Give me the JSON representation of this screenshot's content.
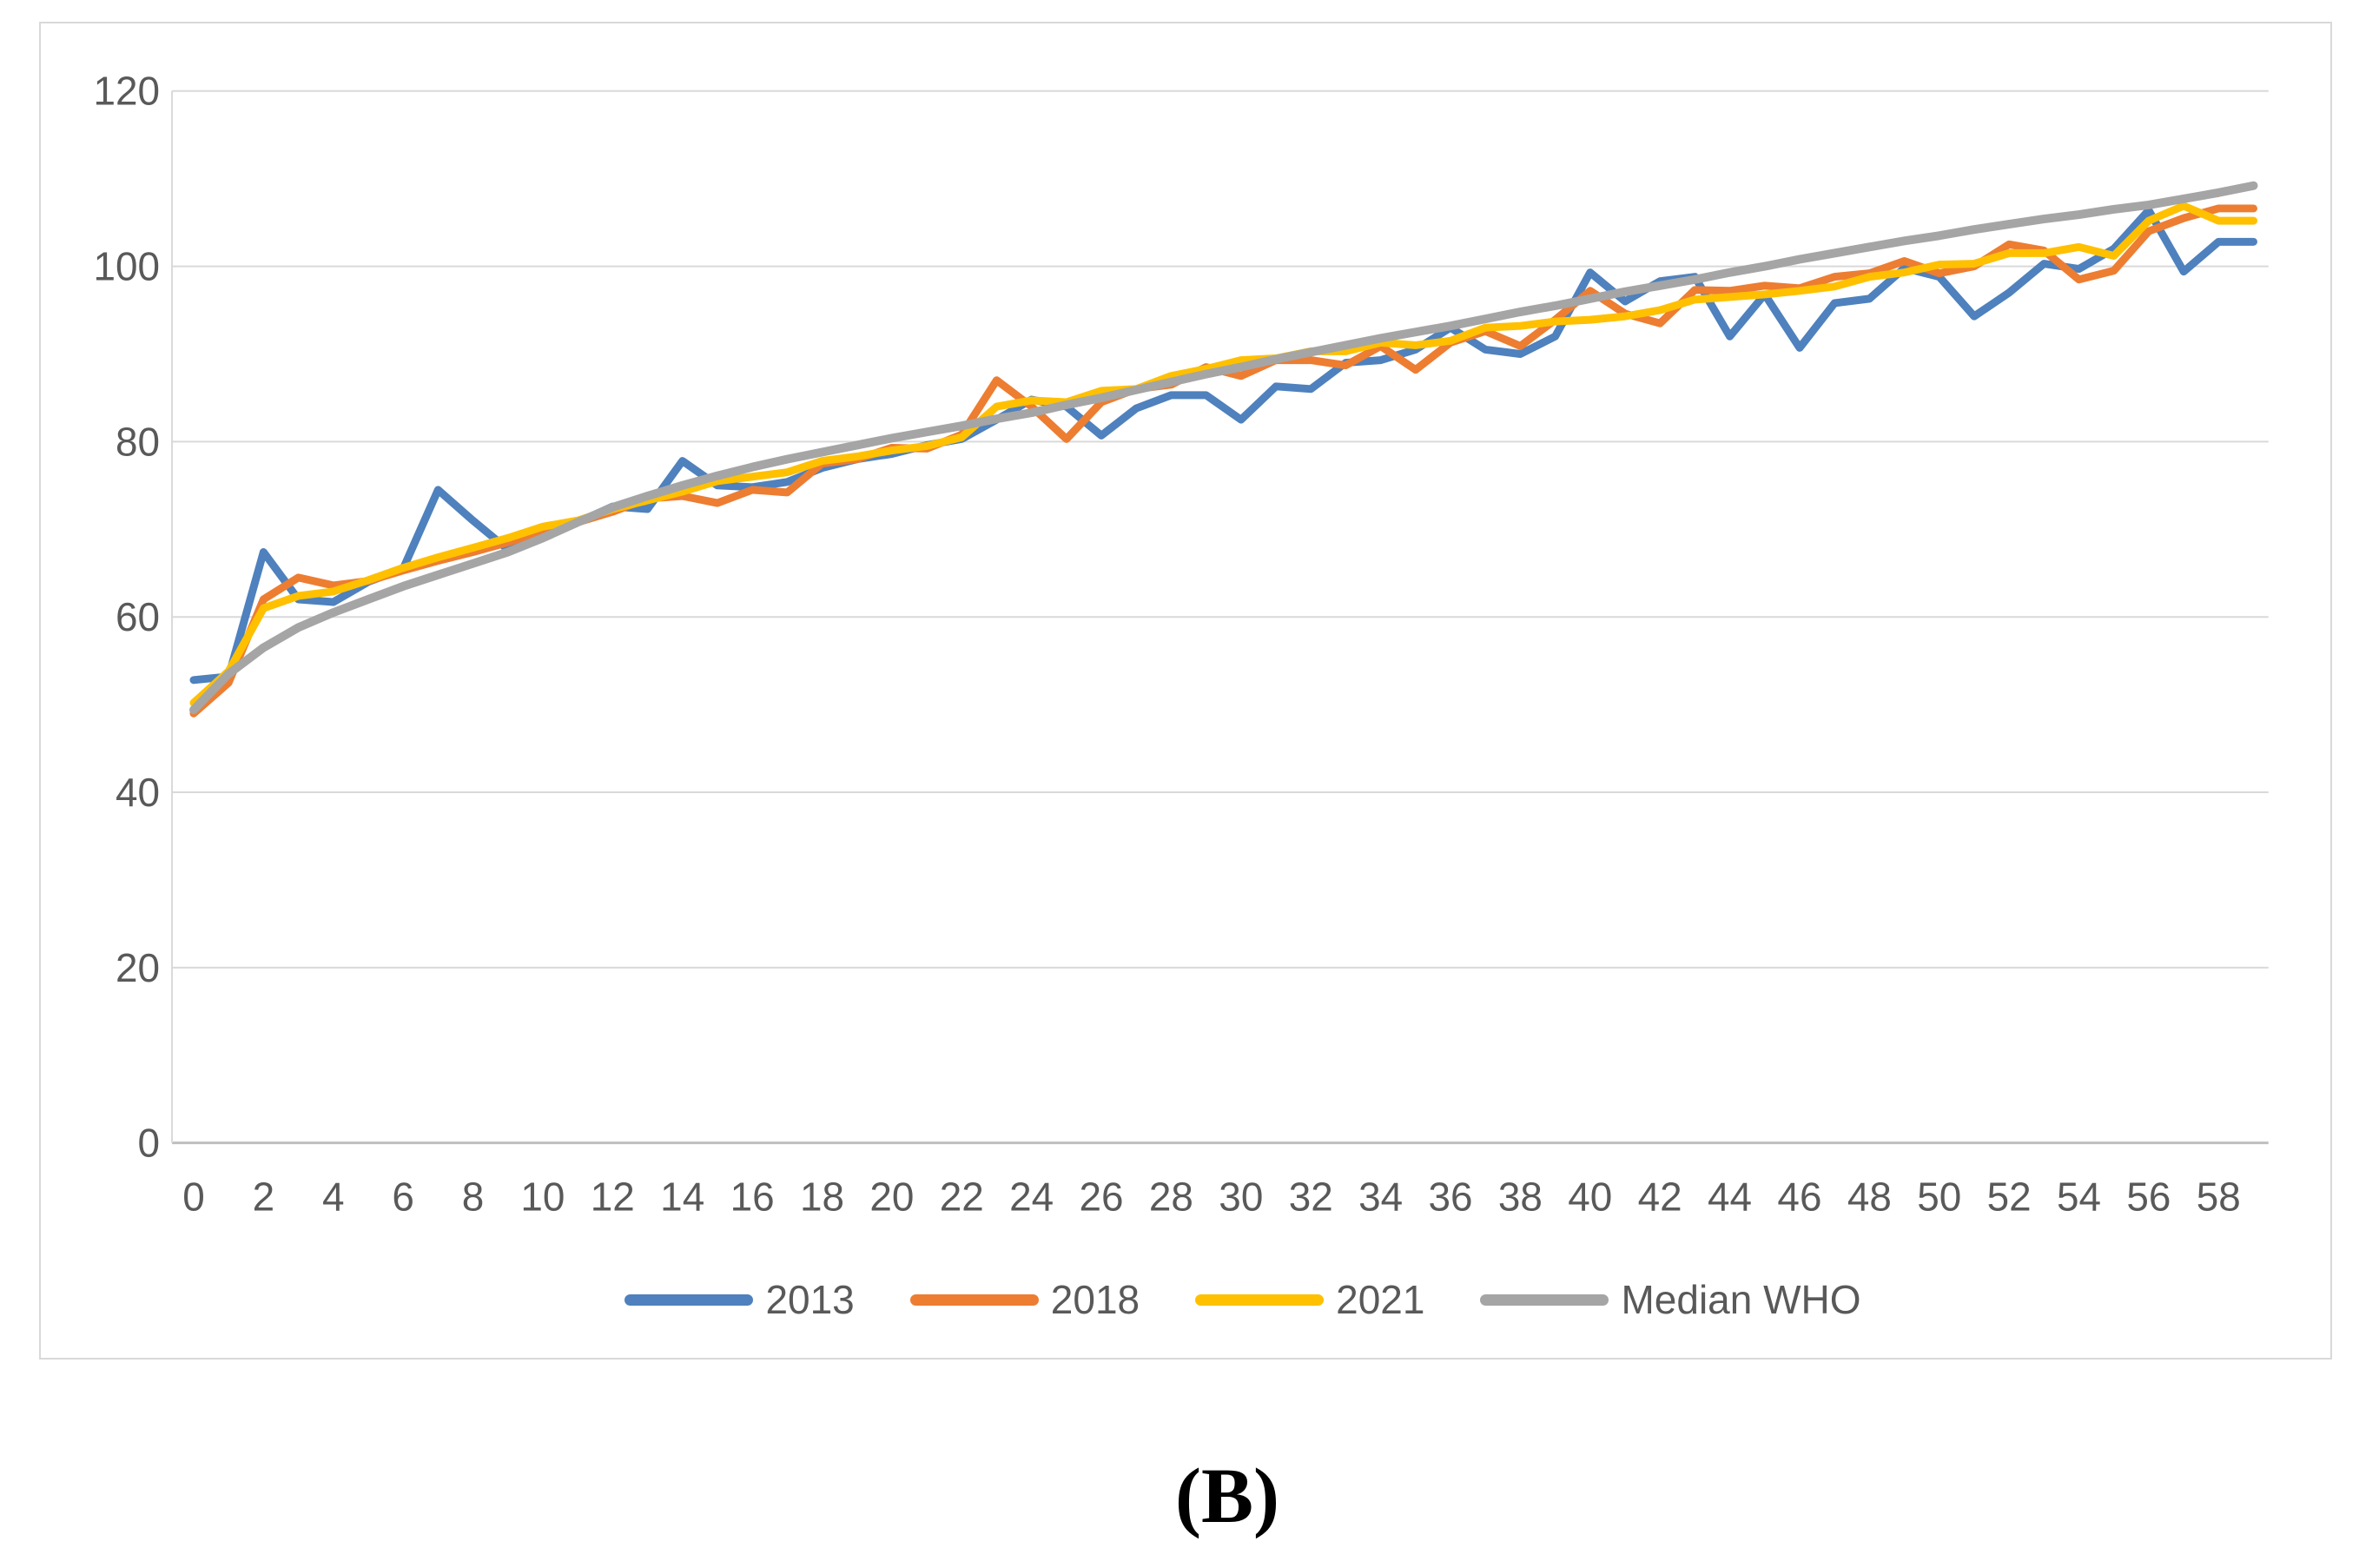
{
  "page": {
    "panel_label": "(B)"
  },
  "chart_data": {
    "type": "line",
    "title": "",
    "xlabel": "",
    "ylabel": "",
    "ylim": [
      0,
      120
    ],
    "yticks": [
      0,
      20,
      40,
      60,
      80,
      100,
      120
    ],
    "xticks": [
      0,
      2,
      4,
      6,
      8,
      10,
      12,
      14,
      16,
      18,
      20,
      22,
      24,
      26,
      28,
      30,
      32,
      34,
      36,
      38,
      40,
      42,
      44,
      46,
      48,
      50,
      52,
      54,
      56,
      58
    ],
    "x": [
      0,
      1,
      2,
      3,
      4,
      5,
      6,
      7,
      8,
      9,
      10,
      11,
      12,
      13,
      14,
      15,
      16,
      17,
      18,
      19,
      20,
      21,
      22,
      23,
      24,
      25,
      26,
      27,
      28,
      29,
      30,
      31,
      32,
      33,
      34,
      35,
      36,
      37,
      38,
      39,
      40,
      41,
      42,
      43,
      44,
      45,
      46,
      47,
      48,
      49,
      50,
      51,
      52,
      53,
      54,
      55,
      56,
      57,
      58,
      59
    ],
    "grid": true,
    "legend_position": "bottom",
    "axis_text_color": "#595959",
    "gridline_color": "#d9d9d9",
    "axis_line_color": "#bfbfbf",
    "series": [
      {
        "name": "2013",
        "color": "#4e81bd",
        "values": [
          52.8,
          53.2,
          67.4,
          62,
          61.7,
          64,
          65.5,
          74.5,
          71,
          67.7,
          70.2,
          70.8,
          72.6,
          72.3,
          77.8,
          75,
          74.8,
          75.4,
          77,
          78,
          78.6,
          79.6,
          80.3,
          82.5,
          84.8,
          84,
          80.7,
          83.8,
          85.3,
          85.3,
          82.5,
          86.3,
          86,
          89,
          89.3,
          90.5,
          93,
          90.5,
          90,
          92,
          99.3,
          96,
          98.3,
          98.8,
          92,
          96.8,
          90.7,
          95.8,
          96.3,
          99.8,
          98.8,
          94.3,
          97,
          100.3,
          99.7,
          102,
          106.4,
          99.4,
          102.8,
          102.8
        ]
      },
      {
        "name": "2018",
        "color": "#ed7d31",
        "values": [
          49,
          52.5,
          62,
          64.5,
          63.6,
          64.1,
          65.3,
          66.4,
          67.4,
          68.5,
          69.8,
          70.8,
          72,
          73.5,
          73.8,
          73,
          74.5,
          74.2,
          77.5,
          78,
          79.3,
          79.2,
          80.8,
          87,
          84,
          80.3,
          84.5,
          86,
          86.5,
          88.5,
          87.5,
          89.3,
          89.3,
          88.7,
          90.9,
          88.2,
          91.3,
          92.6,
          90.9,
          93.9,
          97.2,
          94.6,
          93.5,
          97.3,
          97.2,
          97.8,
          97.5,
          98.8,
          99.2,
          100.6,
          99.2,
          100,
          102.5,
          101.8,
          98.5,
          99.5,
          104,
          105.5,
          106.6,
          106.6
        ]
      },
      {
        "name": "2021",
        "color": "#ffc000",
        "values": [
          50.2,
          53.8,
          61,
          62.4,
          62.9,
          64.2,
          65.6,
          66.8,
          67.9,
          69,
          70.3,
          71,
          72.3,
          73.3,
          74.3,
          75.5,
          76,
          76.5,
          77.8,
          78.3,
          79,
          79.5,
          80.5,
          84,
          84.7,
          84.5,
          85.8,
          86,
          87.5,
          88.3,
          89.3,
          89.5,
          90.3,
          90.3,
          91.3,
          91,
          91.5,
          93,
          93.2,
          93.7,
          93.9,
          94.3,
          95,
          96.2,
          96.5,
          96.8,
          97.2,
          97.7,
          98.8,
          99.3,
          100.2,
          100.3,
          101.5,
          101.5,
          102.2,
          101.2,
          105.2,
          106.9,
          105.2,
          105.2
        ]
      },
      {
        "name": "Median WHO",
        "color": "#a5a5a5",
        "values": [
          49.4,
          53.5,
          56.5,
          58.8,
          60.5,
          62,
          63.5,
          64.8,
          66.1,
          67.4,
          69,
          70.8,
          72.5,
          73.8,
          75,
          76.1,
          77.1,
          78,
          78.8,
          79.6,
          80.4,
          81.1,
          81.8,
          82.6,
          83.3,
          84.2,
          85,
          85.9,
          86.8,
          87.7,
          88.5,
          89.4,
          90.2,
          91,
          91.8,
          92.5,
          93.2,
          94,
          94.8,
          95.5,
          96.3,
          97.1,
          97.8,
          98.5,
          99.3,
          100,
          100.8,
          101.5,
          102.2,
          102.9,
          103.5,
          104.2,
          104.8,
          105.4,
          105.9,
          106.5,
          107,
          107.7,
          108.4,
          109.2
        ]
      }
    ]
  }
}
